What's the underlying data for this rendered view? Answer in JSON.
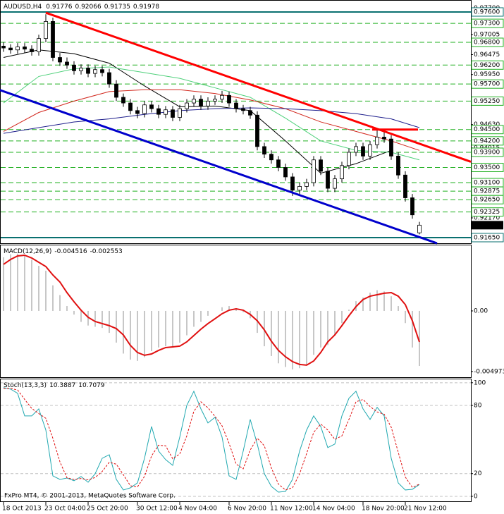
{
  "chart_data": [
    {
      "type": "candlestick",
      "title": "AUDUSD,H4",
      "categories": [
        "18 Oct 2013",
        null,
        null,
        null,
        null,
        null,
        "23 Oct 04:00",
        null,
        null,
        null,
        null,
        null,
        "25 Oct 20:00",
        null,
        null,
        null,
        null,
        null,
        null,
        "30 Oct 12:00",
        null,
        null,
        null,
        null,
        null,
        "4 Nov 04:00",
        null,
        null,
        null,
        null,
        null,
        null,
        "6 Nov 20:00",
        null,
        null,
        null,
        null,
        null,
        "11 Nov 12:00",
        null,
        null,
        null,
        null,
        null,
        "14 Nov 04:00",
        null,
        null,
        null,
        null,
        null,
        null,
        "18 Nov 20:00",
        null,
        null,
        null,
        null,
        null,
        "21 Nov 12:00",
        null,
        null
      ],
      "candles": [
        [
          0.967,
          0.968,
          0.9655,
          0.9665
        ],
        [
          0.9665,
          0.9675,
          0.965,
          0.966
        ],
        [
          0.966,
          0.9678,
          0.965,
          0.9668
        ],
        [
          0.9668,
          0.9678,
          0.9652,
          0.9662
        ],
        [
          0.9662,
          0.9672,
          0.9645,
          0.9655
        ],
        [
          0.9655,
          0.97,
          0.9645,
          0.969
        ],
        [
          0.969,
          0.9754,
          0.968,
          0.9735
        ],
        [
          0.9735,
          0.9745,
          0.963,
          0.964
        ],
        [
          0.964,
          0.9652,
          0.9618,
          0.9628
        ],
        [
          0.9628,
          0.964,
          0.961,
          0.962
        ],
        [
          0.962,
          0.963,
          0.9595,
          0.9605
        ],
        [
          0.9605,
          0.9622,
          0.9595,
          0.9612
        ],
        [
          0.9612,
          0.9622,
          0.9588,
          0.9598
        ],
        [
          0.9598,
          0.9618,
          0.9588,
          0.9608
        ],
        [
          0.9608,
          0.9618,
          0.959,
          0.96
        ],
        [
          0.96,
          0.961,
          0.956,
          0.957
        ],
        [
          0.957,
          0.958,
          0.9525,
          0.9535
        ],
        [
          0.9535,
          0.9545,
          0.951,
          0.952
        ],
        [
          0.952,
          0.953,
          0.949,
          0.95
        ],
        [
          0.95,
          0.951,
          0.948,
          0.9492
        ],
        [
          0.9492,
          0.9525,
          0.9482,
          0.9515
        ],
        [
          0.9515,
          0.9525,
          0.9495,
          0.9505
        ],
        [
          0.9505,
          0.9515,
          0.948,
          0.949
        ],
        [
          0.949,
          0.9512,
          0.948,
          0.9502
        ],
        [
          0.9502,
          0.9512,
          0.9472,
          0.9482
        ],
        [
          0.9482,
          0.9515,
          0.9472,
          0.9505
        ],
        [
          0.9505,
          0.953,
          0.9495,
          0.952
        ],
        [
          0.952,
          0.954,
          0.951,
          0.953
        ],
        [
          0.953,
          0.954,
          0.9502,
          0.9512
        ],
        [
          0.9512,
          0.9535,
          0.9502,
          0.9525
        ],
        [
          0.9525,
          0.954,
          0.9515,
          0.953
        ],
        [
          0.953,
          0.9552,
          0.952,
          0.954
        ],
        [
          0.954,
          0.955,
          0.951,
          0.952
        ],
        [
          0.952,
          0.953,
          0.9495,
          0.9505
        ],
        [
          0.9505,
          0.9515,
          0.949,
          0.95
        ],
        [
          0.95,
          0.951,
          0.9478,
          0.9488
        ],
        [
          0.9488,
          0.9498,
          0.9395,
          0.9405
        ],
        [
          0.9405,
          0.9415,
          0.9375,
          0.9385
        ],
        [
          0.9385,
          0.9395,
          0.936,
          0.937
        ],
        [
          0.937,
          0.938,
          0.934,
          0.935
        ],
        [
          0.935,
          0.936,
          0.9315,
          0.9325
        ],
        [
          0.9325,
          0.9335,
          0.9275,
          0.929
        ],
        [
          0.929,
          0.931,
          0.928,
          0.93
        ],
        [
          0.93,
          0.932,
          0.929,
          0.931
        ],
        [
          0.931,
          0.938,
          0.93,
          0.937
        ],
        [
          0.937,
          0.938,
          0.933,
          0.934
        ],
        [
          0.934,
          0.935,
          0.9285,
          0.9295
        ],
        [
          0.9295,
          0.933,
          0.9285,
          0.932
        ],
        [
          0.932,
          0.9365,
          0.931,
          0.9355
        ],
        [
          0.9355,
          0.94,
          0.9345,
          0.939
        ],
        [
          0.939,
          0.9415,
          0.938,
          0.9405
        ],
        [
          0.9405,
          0.9415,
          0.937,
          0.938
        ],
        [
          0.938,
          0.942,
          0.937,
          0.941
        ],
        [
          0.941,
          0.9448,
          0.94,
          0.943
        ],
        [
          0.943,
          0.9445,
          0.9415,
          0.9425
        ],
        [
          0.9425,
          0.9435,
          0.937,
          0.938
        ],
        [
          0.938,
          0.939,
          0.932,
          0.933
        ],
        [
          0.933,
          0.934,
          0.926,
          0.927
        ],
        [
          0.927,
          0.928,
          0.9215,
          0.9225
        ],
        [
          0.91776,
          0.92066,
          0.91735,
          0.91978
        ]
      ],
      "up_color": "#ffffff",
      "down_color": "#000000",
      "ylim": [
        0.91501,
        0.9786
      ],
      "yticks": [
        {
          "value": 0.977,
          "label": "0.97700"
        },
        0.97005,
        0.96475,
        {
          "value": 0.9595,
          "label": "0.95950"
        },
        {
          "value": 0.9463,
          "label": "0.94630"
        },
        0.94015,
        {
          "value": 0.9355,
          "label": "0.93550"
        },
        {
          "value": 0.9217,
          "label": "0.92170"
        }
      ],
      "levels": [
        {
          "value": 0.973,
          "label": "0.97300"
        },
        {
          "value": 0.968,
          "label": "0.96800"
        },
        {
          "value": 0.962,
          "label": "0.96200"
        },
        {
          "value": 0.957,
          "label": "0.95700"
        },
        {
          "value": 0.9525,
          "label": "0.95250"
        },
        {
          "value": 0.945,
          "label": "0.94500"
        },
        {
          "value": 0.942,
          "label": "0.94200"
        },
        {
          "value": 0.939,
          "label": "0.93900"
        },
        {
          "value": 0.935,
          "label": "0.93500"
        },
        {
          "value": 0.931,
          "label": "0.93100"
        },
        0.92875,
        {
          "value": 0.9265,
          "label": "0.92650"
        },
        0.92325
      ],
      "level_color": "#22b022",
      "support_resistance": [
        {
          "value": 0.976,
          "label": "0.97600"
        },
        {
          "value": 0.9165,
          "label": "0.91650"
        }
      ],
      "support_color": "#0a7070",
      "moving_averages": [
        {
          "color": "#000000",
          "x": [
            0,
            5,
            10,
            15,
            20,
            25,
            30,
            35,
            40,
            45,
            50,
            55
          ],
          "values": [
            0.964,
            0.966,
            0.965,
            0.9625,
            0.9565,
            0.951,
            0.9512,
            0.95,
            0.942,
            0.9335,
            0.936,
            0.9395
          ]
        },
        {
          "color": "#4ed07a",
          "x": [
            0,
            5,
            10,
            15,
            20,
            25,
            30,
            35,
            40,
            45,
            50,
            55,
            59
          ],
          "values": [
            0.952,
            0.959,
            0.961,
            0.9615,
            0.96,
            0.9585,
            0.956,
            0.9535,
            0.948,
            0.942,
            0.9395,
            0.939,
            0.937
          ]
        },
        {
          "color": "#d2281e",
          "x": [
            0,
            5,
            10,
            15,
            20,
            25,
            30,
            35,
            40,
            45,
            50,
            55,
            59
          ],
          "values": [
            0.9445,
            0.9495,
            0.9525,
            0.955,
            0.9555,
            0.9555,
            0.9545,
            0.9528,
            0.9505,
            0.947,
            0.9445,
            0.942,
            0.9395
          ]
        },
        {
          "color": "#1e1e8c",
          "x": [
            0,
            5,
            10,
            15,
            20,
            25,
            30,
            35,
            40,
            45,
            50,
            55,
            59
          ],
          "values": [
            0.944,
            0.9455,
            0.947,
            0.9478,
            0.949,
            0.95,
            0.9505,
            0.9507,
            0.9505,
            0.95,
            0.9492,
            0.9478,
            0.9455
          ]
        }
      ],
      "trendlines": [
        {
          "color": "#ff0000",
          "x": [
            6,
            66.3
          ],
          "values": [
            0.9758,
            0.9365
          ]
        },
        {
          "color": "#0000cc",
          "x": [
            -0.5,
            61.5
          ],
          "values": [
            0.9554,
            0.915
          ]
        },
        {
          "color": "#ff0000",
          "x": [
            52.3,
            58.8
          ],
          "values": [
            0.945,
            0.945
          ]
        }
      ]
    },
    {
      "type": "macd",
      "title": "MACD(12,26,9)",
      "series": [
        {
          "color": "#b4b4b4",
          "values": [
            0.0044,
            0.00465,
            0.0047,
            0.00455,
            0.0042,
            0.0037,
            0.0033,
            0.0021,
            0.0013,
            0.0004,
            -0.0003,
            -0.0009,
            -0.0012,
            -0.0013,
            -0.0014,
            -0.0018,
            -0.0026,
            -0.0035,
            -0.004,
            -0.0041,
            -0.0038,
            -0.0033,
            -0.003,
            -0.0029,
            -0.003,
            -0.0026,
            -0.002,
            -0.0013,
            -0.0009,
            -0.0004,
            0.0,
            0.0003,
            0.0004,
            0.0002,
            -0.0001,
            -0.0006,
            -0.0018,
            -0.0029,
            -0.0037,
            -0.0043,
            -0.0046,
            -0.0048,
            -0.0047,
            -0.0044,
            -0.0036,
            -0.003,
            -0.0028,
            -0.002,
            -0.001,
            0.0001,
            0.0008,
            0.0011,
            0.0015,
            0.0017,
            0.0016,
            0.0012,
            0.0004,
            -0.001,
            -0.003,
            -0.004516
          ]
        },
        {
          "color": "#e01010",
          "values": [
            0.00382,
            0.00422,
            0.00451,
            0.00457,
            0.00434,
            0.00399,
            0.00364,
            0.00295,
            0.00237,
            0.0015,
            0.00075,
            6e-05,
            -0.00052,
            -0.00087,
            -0.00104,
            -0.00121,
            -0.00145,
            -0.00197,
            -0.00283,
            -0.00341,
            -0.00364,
            -0.00353,
            -0.00324,
            -0.00301,
            -0.00295,
            -0.00289,
            -0.00254,
            -0.00202,
            -0.0015,
            -0.00104,
            -0.00064,
            -0.00023,
            6e-05,
            0.00017,
            6e-05,
            -0.00029,
            -0.00081,
            -0.00156,
            -0.00249,
            -0.00324,
            -0.00376,
            -0.00416,
            -0.00439,
            -0.00445,
            -0.00411,
            -0.00341,
            -0.00254,
            -0.00197,
            -0.00121,
            -0.0004,
            0.00035,
            0.00093,
            0.00121,
            0.00133,
            0.00145,
            0.0015,
            0.00121,
            0.00052,
            -0.00081,
            -0.002553
          ]
        }
      ],
      "ylim": [
        -0.00544,
        0.00532
      ],
      "yticks": [
        {
          "value": 0,
          "label": "0.00"
        },
        -0.004973
      ]
    },
    {
      "type": "stochastic",
      "title": "Stoch(13,3,3)",
      "series": [
        {
          "color": "#20a8b0",
          "values": [
            95.7,
            94.4,
            90.7,
            70.8,
            70.8,
            77.0,
            58.4,
            18.0,
            14.9,
            16.1,
            13.7,
            17.4,
            12.4,
            19.9,
            33.5,
            36.6,
            14.9,
            5.6,
            7.5,
            11.8,
            33.5,
            61.5,
            39.8,
            32.3,
            27.3,
            52.2,
            80.1,
            92.5,
            77.0,
            64.6,
            69.6,
            52.2,
            18.0,
            14.9,
            39.8,
            67.7,
            46.0,
            19.9,
            8.7,
            3.7,
            4.3,
            14.9,
            39.8,
            58.4,
            70.8,
            61.5,
            42.9,
            46.0,
            70.8,
            86.3,
            92.5,
            77.0,
            67.7,
            78.3,
            70.8,
            33.5,
            11.8,
            5.6,
            6.2,
            10.3887
          ]
        },
        {
          "color": "#e01010",
          "dashed": true,
          "values": [
            95.0,
            95.0,
            93.6,
            85.3,
            77.4,
            72.9,
            68.7,
            51.1,
            30.4,
            16.3,
            14.9,
            15.7,
            14.5,
            16.6,
            21.9,
            30.0,
            28.3,
            19.0,
            9.3,
            8.3,
            17.6,
            35.6,
            45.0,
            44.5,
            33.1,
            37.3,
            53.2,
            74.9,
            83.2,
            78.0,
            70.4,
            62.1,
            46.6,
            28.4,
            24.2,
            40.8,
            51.2,
            44.5,
            24.9,
            10.8,
            5.6,
            7.6,
            19.7,
            37.7,
            56.3,
            63.6,
            58.4,
            50.1,
            53.2,
            67.7,
            83.2,
            85.3,
            79.1,
            74.3,
            72.3,
            60.9,
            38.7,
            17.0,
            7.9,
            10.7079
          ]
        }
      ],
      "ylim": [
        -5,
        103
      ],
      "yticks": [
        100,
        80,
        20,
        0
      ]
    }
  ],
  "footer": "FxPro MT4, © 2001-2013, MetaQuotes Software Corp."
}
